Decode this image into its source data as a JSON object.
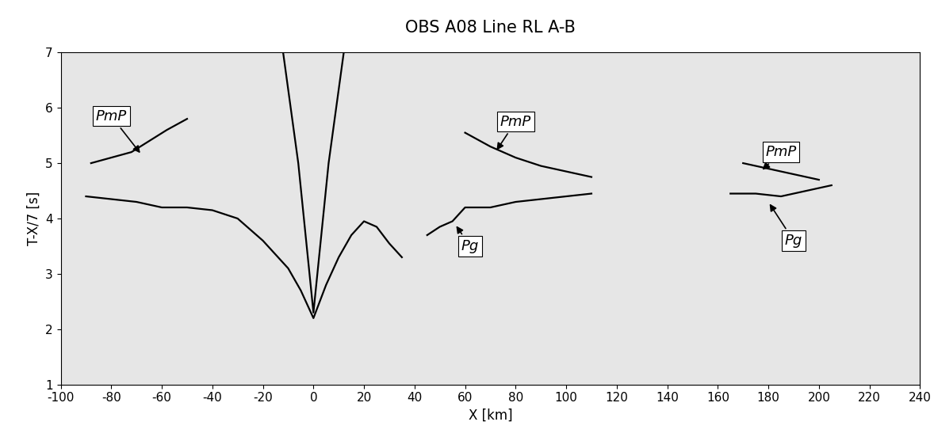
{
  "chart_data": {
    "type": "line",
    "title": "OBS A08 Line RL A-B",
    "x_label": "X [km]",
    "y_label": "T-X/7 [s]",
    "xlim": [
      -100,
      240
    ],
    "ylim": [
      1,
      7
    ],
    "xticks": [
      -100,
      -80,
      -60,
      -40,
      -20,
      0,
      20,
      40,
      60,
      80,
      100,
      120,
      140,
      160,
      180,
      200,
      220,
      240
    ],
    "yticks": [
      1,
      2,
      3,
      4,
      5,
      6,
      7
    ],
    "grid": false,
    "series": [
      {
        "color": "#000000",
        "line_style": "solid",
        "x": [
          -90,
          -80,
          -70,
          -60,
          -50,
          -40,
          -30,
          -20,
          -10,
          -5,
          0,
          5,
          10,
          15,
          20,
          25,
          30,
          35
        ],
        "values": [
          4.4,
          4.35,
          4.3,
          4.2,
          4.2,
          4.15,
          4.0,
          3.6,
          3.1,
          2.7,
          2.2,
          2.8,
          3.3,
          3.7,
          3.95,
          3.85,
          3.55,
          3.3
        ]
      },
      {
        "color": "#000000",
        "line_style": "solid",
        "x": [
          45,
          50,
          55,
          60,
          70,
          80,
          90,
          100,
          110
        ],
        "values": [
          3.7,
          3.85,
          3.95,
          4.2,
          4.2,
          4.3,
          4.35,
          4.4,
          4.45
        ]
      },
      {
        "color": "#000000",
        "line_style": "solid",
        "x": [
          165,
          175,
          185,
          195,
          205
        ],
        "values": [
          4.45,
          4.45,
          4.4,
          4.5,
          4.6
        ]
      },
      {
        "color": "#000000",
        "line_style": "solid",
        "x": [
          -88,
          -80,
          -72,
          -65,
          -58,
          -50
        ],
        "values": [
          5.0,
          5.1,
          5.2,
          5.4,
          5.6,
          5.8
        ]
      },
      {
        "color": "#000000",
        "line_style": "solid",
        "x": [
          60,
          70,
          80,
          90,
          100,
          110
        ],
        "values": [
          5.55,
          5.3,
          5.1,
          4.95,
          4.85,
          4.75
        ]
      },
      {
        "color": "#000000",
        "line_style": "solid",
        "x": [
          170,
          180,
          190,
          200
        ],
        "values": [
          5.0,
          4.9,
          4.8,
          4.7
        ]
      },
      {
        "color": "#000000",
        "line_style": "solid",
        "x": [
          -12,
          -6,
          0,
          6,
          12
        ],
        "values": [
          7,
          5,
          2.3,
          5,
          7
        ]
      }
    ],
    "annotations": [
      {
        "text": "PmP",
        "x": -68,
        "y": 5.15,
        "text_x": -80,
        "text_y": 5.85
      },
      {
        "text": "PmP",
        "x": 72,
        "y": 5.2,
        "text_x": 80,
        "text_y": 5.75
      },
      {
        "text": "PmP",
        "x": 177,
        "y": 4.85,
        "text_x": 185,
        "text_y": 5.2
      },
      {
        "text": "Pg",
        "x": 56,
        "y": 3.9,
        "text_x": 62,
        "text_y": 3.5
      },
      {
        "text": "Pg",
        "x": 180,
        "y": 4.3,
        "text_x": 190,
        "text_y": 3.6
      }
    ]
  }
}
